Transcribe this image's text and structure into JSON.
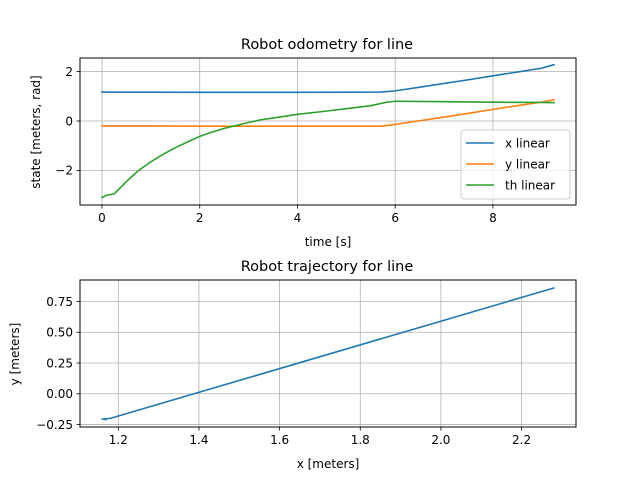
{
  "chart_data": [
    {
      "type": "line",
      "title": "Robot odometry for line",
      "xlabel": "time [s]",
      "ylabel": "state [meters, rad]",
      "xlim": [
        -0.45,
        9.7
      ],
      "ylim": [
        -3.4,
        2.55
      ],
      "xticks": [
        0,
        2,
        4,
        6,
        8
      ],
      "yticks": [
        -2,
        0,
        2
      ],
      "xtick_labels": [
        "0",
        "2",
        "4",
        "6",
        "8"
      ],
      "ytick_labels": [
        "−2",
        "0",
        "2"
      ],
      "grid": true,
      "legend_position": "lower-right",
      "series": [
        {
          "name": "x linear",
          "color": "#1f77b4",
          "x": [
            0,
            1,
            2,
            3,
            4,
            5,
            5.7,
            6.0,
            6.5,
            7.0,
            7.5,
            8.0,
            8.5,
            9.0,
            9.25
          ],
          "y": [
            1.17,
            1.165,
            1.16,
            1.16,
            1.16,
            1.165,
            1.17,
            1.22,
            1.37,
            1.52,
            1.67,
            1.83,
            1.98,
            2.14,
            2.28
          ]
        },
        {
          "name": "y linear",
          "color": "#ff7f0e",
          "x": [
            0,
            1,
            2,
            3,
            4,
            5,
            5.7,
            6.0,
            6.5,
            7.0,
            7.5,
            8.0,
            8.5,
            9.0,
            9.25
          ],
          "y": [
            -0.2,
            -0.2,
            -0.21,
            -0.21,
            -0.21,
            -0.21,
            -0.21,
            -0.14,
            0.01,
            0.16,
            0.31,
            0.47,
            0.62,
            0.77,
            0.86
          ]
        },
        {
          "name": "th linear",
          "color": "#2ca02c",
          "x": [
            0,
            0.1,
            0.25,
            0.5,
            0.75,
            1.0,
            1.25,
            1.5,
            1.75,
            2.0,
            2.25,
            2.5,
            2.75,
            3.0,
            3.25,
            3.5,
            4.0,
            4.5,
            5.0,
            5.5,
            5.8,
            6.0,
            6.5,
            7.0,
            8.0,
            9.0,
            9.25
          ],
          "y": [
            -3.1,
            -3.0,
            -2.95,
            -2.45,
            -2.0,
            -1.65,
            -1.35,
            -1.08,
            -0.85,
            -0.62,
            -0.45,
            -0.3,
            -0.18,
            -0.06,
            0.05,
            0.12,
            0.27,
            0.38,
            0.5,
            0.62,
            0.75,
            0.8,
            0.79,
            0.78,
            0.76,
            0.75,
            0.74
          ]
        }
      ]
    },
    {
      "type": "line",
      "title": "Robot trajectory for line",
      "xlabel": "x [meters]",
      "ylabel": "y [meters]",
      "xlim": [
        1.105,
        2.335
      ],
      "ylim": [
        -0.27,
        0.925
      ],
      "xticks": [
        1.2,
        1.4,
        1.6,
        1.8,
        2.0,
        2.2
      ],
      "yticks": [
        -0.25,
        0.0,
        0.25,
        0.5,
        0.75
      ],
      "xtick_labels": [
        "1.2",
        "1.4",
        "1.6",
        "1.8",
        "2.0",
        "2.2"
      ],
      "ytick_labels": [
        "−0.25",
        "0.00",
        "0.25",
        "0.50",
        "0.75"
      ],
      "grid": true,
      "series": [
        {
          "color": "#1f77b4",
          "x": [
            1.16,
            1.17,
            1.165,
            1.18,
            2.28
          ],
          "y": [
            -0.205,
            -0.21,
            -0.205,
            -0.2,
            0.86
          ]
        }
      ]
    }
  ]
}
